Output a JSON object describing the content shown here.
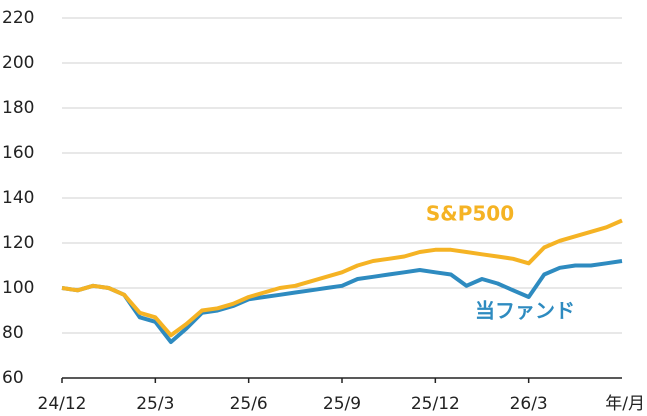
{
  "chart_data": {
    "type": "line",
    "x_label": "年/月",
    "x": [
      0,
      0.5,
      1,
      1.5,
      2,
      2.5,
      3,
      3.5,
      4,
      4.5,
      5,
      5.5,
      6,
      6.5,
      7,
      7.5,
      8,
      8.5,
      9,
      9.5,
      10,
      10.5,
      11,
      11.5,
      12,
      12.5,
      13,
      13.5,
      14,
      14.5,
      15,
      15.5,
      16,
      16.5,
      17,
      17.5,
      18
    ],
    "series": [
      {
        "name": "S&P500",
        "color": "#f5b324",
        "values": [
          100,
          99,
          101,
          100,
          97,
          89,
          87,
          79,
          84,
          90,
          91,
          93,
          96,
          98,
          100,
          101,
          103,
          105,
          107,
          110,
          112,
          113,
          114,
          116,
          117,
          117,
          116,
          115,
          114,
          113,
          111,
          118,
          121,
          123,
          125,
          127,
          130
        ]
      },
      {
        "name": "当ファンド",
        "color": "#2e8bc0",
        "values": [
          100,
          99,
          101,
          100,
          97,
          87,
          85,
          76,
          82,
          89,
          90,
          92,
          95,
          96,
          97,
          98,
          99,
          100,
          101,
          104,
          105,
          106,
          107,
          108,
          107,
          106,
          101,
          104,
          102,
          99,
          96,
          106,
          109,
          110,
          110,
          111,
          112
        ]
      }
    ],
    "xlim": [
      0,
      18
    ],
    "xticks": [
      {
        "value": 0,
        "label": "24/12"
      },
      {
        "value": 3,
        "label": "25/3"
      },
      {
        "value": 6,
        "label": "25/6"
      },
      {
        "value": 9,
        "label": "25/9"
      },
      {
        "value": 12,
        "label": "25/12"
      },
      {
        "value": 15,
        "label": "26/3"
      }
    ],
    "ylim": [
      60,
      220
    ],
    "yticks": [
      60,
      80,
      100,
      120,
      140,
      160,
      180,
      200,
      220
    ],
    "grid": true
  }
}
